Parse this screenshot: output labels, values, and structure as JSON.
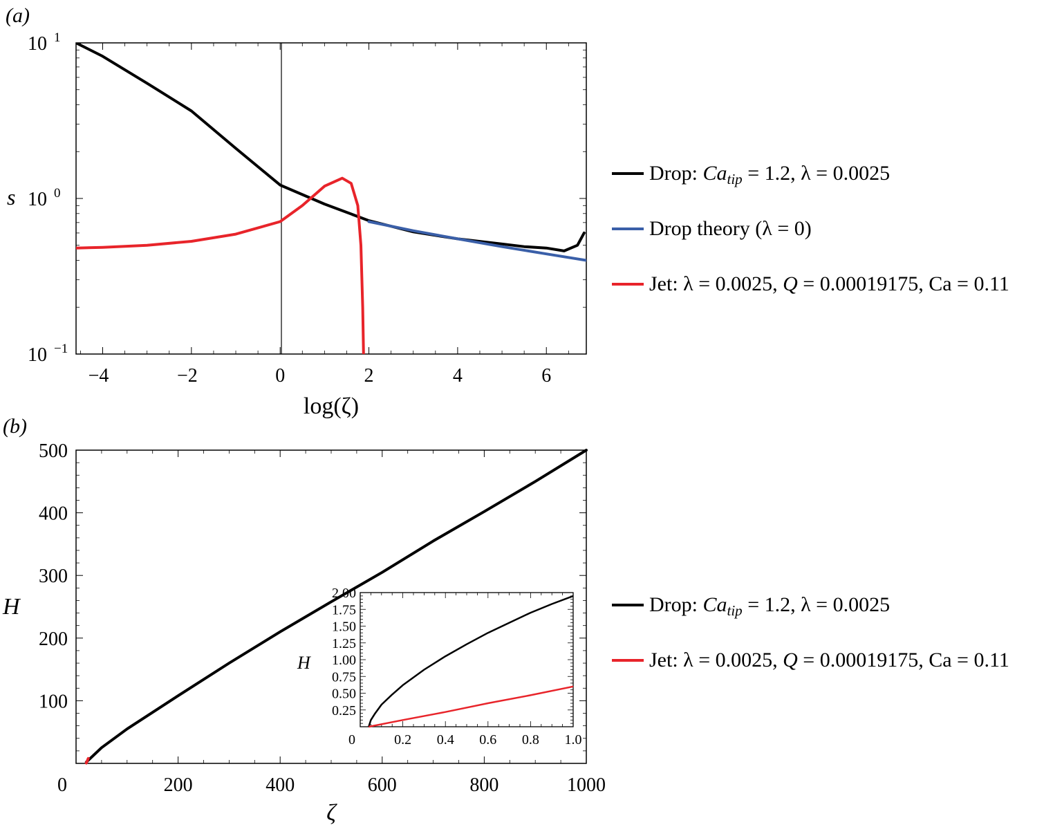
{
  "panel_a": {
    "panel_label": "(a)",
    "y_axis_label": "s",
    "x_axis_label": "log(ζ)",
    "y_tick_labels": [
      "10",
      "10",
      "10"
    ],
    "y_tick_exponents": [
      "1",
      "0",
      "−1"
    ],
    "x_tick_labels": [
      "−4",
      "−2",
      "0",
      "2",
      "4",
      "6"
    ],
    "legend": [
      {
        "prefix": "Drop: ",
        "var": "Ca",
        "sub": "tip",
        "suffix": " = 1.2, λ = 0.0025",
        "color": "#000000"
      },
      {
        "prefix": "Drop theory (λ = 0)",
        "var": "",
        "sub": "",
        "suffix": "",
        "color": "#3a5fa8"
      },
      {
        "prefix": "Jet: λ = 0.0025, ",
        "var": "Q",
        "sub": "",
        "suffix": " = 0.00019175, Ca = 0.11",
        "color": "#e8242a"
      }
    ]
  },
  "panel_b": {
    "panel_label": "(b)",
    "y_axis_label": "H",
    "x_axis_label": "ζ",
    "y_tick_labels": [
      "100",
      "200",
      "300",
      "400",
      "500"
    ],
    "x_tick_labels": [
      "0",
      "200",
      "400",
      "600",
      "800",
      "1000"
    ],
    "inset": {
      "y_axis_label": "H",
      "y_tick_labels": [
        "0.25",
        "0.50",
        "0.75",
        "1.00",
        "1.25",
        "1.50",
        "1.75",
        "2.00"
      ],
      "x_tick_labels": [
        "0",
        "0.2",
        "0.4",
        "0.6",
        "0.8",
        "1.0"
      ]
    },
    "legend": [
      {
        "prefix": "Drop: ",
        "var": "Ca",
        "sub": "tip",
        "suffix": " = 1.2, λ = 0.0025",
        "color": "#000000"
      },
      {
        "prefix": "Jet: λ = 0.0025, ",
        "var": "Q",
        "sub": "",
        "suffix": " = 0.00019175, Ca = 0.11",
        "color": "#e8242a"
      }
    ]
  },
  "chart_data": [
    {
      "type": "line",
      "title": "",
      "xlabel": "log(ζ)",
      "ylabel": "s",
      "xlim": [
        -4.6,
        6.9
      ],
      "ylim": [
        0.1,
        10
      ],
      "y_scale": "log",
      "grid": false,
      "legend_position": "right",
      "series": [
        {
          "name": "Drop: Ca_tip = 1.2, λ = 0.0025",
          "color": "#000000",
          "x": [
            -4.6,
            -4,
            -3,
            -2,
            -1,
            0,
            1,
            2,
            3,
            4,
            5,
            5.5,
            6,
            6.4,
            6.7,
            6.85
          ],
          "y": [
            10,
            8.2,
            5.5,
            3.65,
            2.1,
            1.22,
            0.92,
            0.72,
            0.61,
            0.55,
            0.51,
            0.49,
            0.48,
            0.46,
            0.5,
            0.6
          ]
        },
        {
          "name": "Drop theory (λ = 0)",
          "color": "#3a5fa8",
          "x": [
            2,
            3,
            4,
            5,
            6,
            6.9
          ],
          "y": [
            0.71,
            0.62,
            0.55,
            0.49,
            0.44,
            0.4
          ]
        },
        {
          "name": "Jet: λ = 0.0025, Q = 0.00019175, Ca = 0.11",
          "color": "#e8242a",
          "x": [
            -4.6,
            -4,
            -3,
            -2,
            -1,
            0,
            0.5,
            1,
            1.4,
            1.6,
            1.75,
            1.82,
            1.86,
            1.88
          ],
          "y": [
            0.48,
            0.485,
            0.5,
            0.53,
            0.59,
            0.71,
            0.9,
            1.2,
            1.35,
            1.25,
            0.9,
            0.5,
            0.2,
            0.1
          ]
        }
      ]
    },
    {
      "type": "line",
      "title": "",
      "xlabel": "ζ",
      "ylabel": "H",
      "xlim": [
        0,
        1000
      ],
      "ylim": [
        0,
        500
      ],
      "grid": false,
      "legend_position": "right",
      "series": [
        {
          "name": "Drop: Ca_tip = 1.2, λ = 0.0025",
          "color": "#000000",
          "x": [
            20,
            50,
            100,
            200,
            300,
            400,
            500,
            600,
            700,
            800,
            900,
            1000
          ],
          "y": [
            2,
            25,
            55,
            108,
            160,
            210,
            258,
            305,
            355,
            402,
            450,
            500
          ]
        },
        {
          "name": "Jet: λ = 0.0025, Q = 0.00019175, Ca = 0.11",
          "color": "#e8242a",
          "x": [
            20,
            22,
            24
          ],
          "y": [
            0.5,
            4,
            8
          ]
        }
      ]
    },
    {
      "type": "line",
      "title": "",
      "xlabel": "",
      "ylabel": "H",
      "xlim": [
        0,
        1.0
      ],
      "ylim": [
        0,
        2.0
      ],
      "grid": false,
      "series": [
        {
          "name": "Drop: Ca_tip = 1.2, λ = 0.0025",
          "color": "#000000",
          "x": [
            0.04,
            0.05,
            0.07,
            0.1,
            0.15,
            0.2,
            0.3,
            0.4,
            0.5,
            0.6,
            0.7,
            0.8,
            0.9,
            1.0
          ],
          "y": [
            0.0,
            0.1,
            0.2,
            0.33,
            0.48,
            0.62,
            0.85,
            1.05,
            1.23,
            1.4,
            1.55,
            1.7,
            1.83,
            1.95
          ]
        },
        {
          "name": "Jet: λ = 0.0025, Q = 0.00019175, Ca = 0.11",
          "color": "#e8242a",
          "x": [
            0.04,
            0.2,
            0.4,
            0.6,
            0.8,
            1.0
          ],
          "y": [
            0.0,
            0.1,
            0.22,
            0.35,
            0.47,
            0.6
          ]
        }
      ]
    }
  ]
}
